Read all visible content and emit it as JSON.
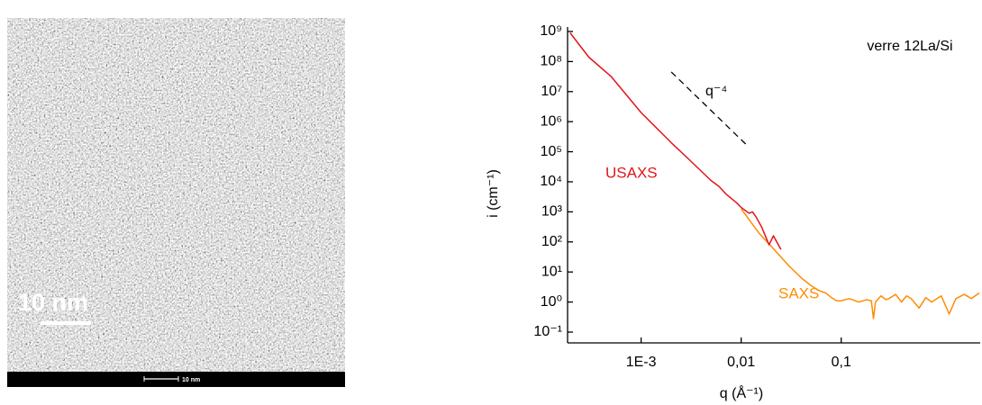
{
  "image": {
    "scale_label": "10 nm",
    "footer_label": "10 nm"
  },
  "chart_data": {
    "type": "line",
    "xscale": "log",
    "yscale": "log",
    "xlabel": "q (Å⁻¹)",
    "ylabel": "i (cm⁻¹)",
    "note": "verre 12La/Si",
    "xlim": [
      0.000184,
      2.45
    ],
    "ylim": [
      0.0437,
      1410000000
    ],
    "xticks": [
      {
        "value": 0.001,
        "label": "1E-3"
      },
      {
        "value": 0.01,
        "label": "0,01"
      },
      {
        "value": 0.1,
        "label": "0,1"
      }
    ],
    "yticks": [
      {
        "value": 0.1,
        "label": "10⁻¹"
      },
      {
        "value": 1,
        "label": "10⁰"
      },
      {
        "value": 10,
        "label": "10¹"
      },
      {
        "value": 100,
        "label": "10²"
      },
      {
        "value": 1000,
        "label": "10³"
      },
      {
        "value": 10000,
        "label": "10⁴"
      },
      {
        "value": 100000,
        "label": "10⁵"
      },
      {
        "value": 1000000,
        "label": "10⁶"
      },
      {
        "value": 10000000,
        "label": "10⁷"
      },
      {
        "value": 100000000,
        "label": "10⁸"
      },
      {
        "value": 1000000000,
        "label": "10⁹"
      }
    ],
    "series": [
      {
        "name": "SAXS",
        "color": "#ff8c00",
        "x": [
          0.01,
          0.015,
          0.02,
          0.03,
          0.04,
          0.05,
          0.06,
          0.07,
          0.08,
          0.09,
          0.1,
          0.12,
          0.15,
          0.18,
          0.2,
          0.21,
          0.22,
          0.25,
          0.28,
          0.3,
          0.35,
          0.4,
          0.45,
          0.5,
          0.6,
          0.7,
          0.8,
          1.0,
          1.2,
          1.4,
          1.7,
          2.0,
          2.4
        ],
        "values": [
          1260,
          200,
          71,
          16,
          6.3,
          3.5,
          2.4,
          2.0,
          1.4,
          1.1,
          1.1,
          1.3,
          1.0,
          1.2,
          1.1,
          0.28,
          1.0,
          1.6,
          1.2,
          1.3,
          1.8,
          1.0,
          1.6,
          1.3,
          0.63,
          1.4,
          1.0,
          1.6,
          0.4,
          1.3,
          1.8,
          1.3,
          2.0
        ]
      },
      {
        "name": "USAXS",
        "color": "#e0161c",
        "x": [
          0.000195,
          0.0003,
          0.0005,
          0.001,
          0.002,
          0.003,
          0.005,
          0.006,
          0.007,
          0.009,
          0.01,
          0.012,
          0.013,
          0.014,
          0.016,
          0.019,
          0.021,
          0.025
        ],
        "values": [
          900000000,
          140000000,
          32000000,
          2000000,
          200000,
          56000,
          11000,
          7000,
          4000,
          2000,
          1400,
          900,
          1000,
          700,
          316,
          80,
          160,
          56
        ]
      }
    ],
    "guide": {
      "name": "q⁻⁴",
      "x": [
        0.002,
        0.0115
      ],
      "values": [
        45000000,
        160000
      ]
    }
  }
}
